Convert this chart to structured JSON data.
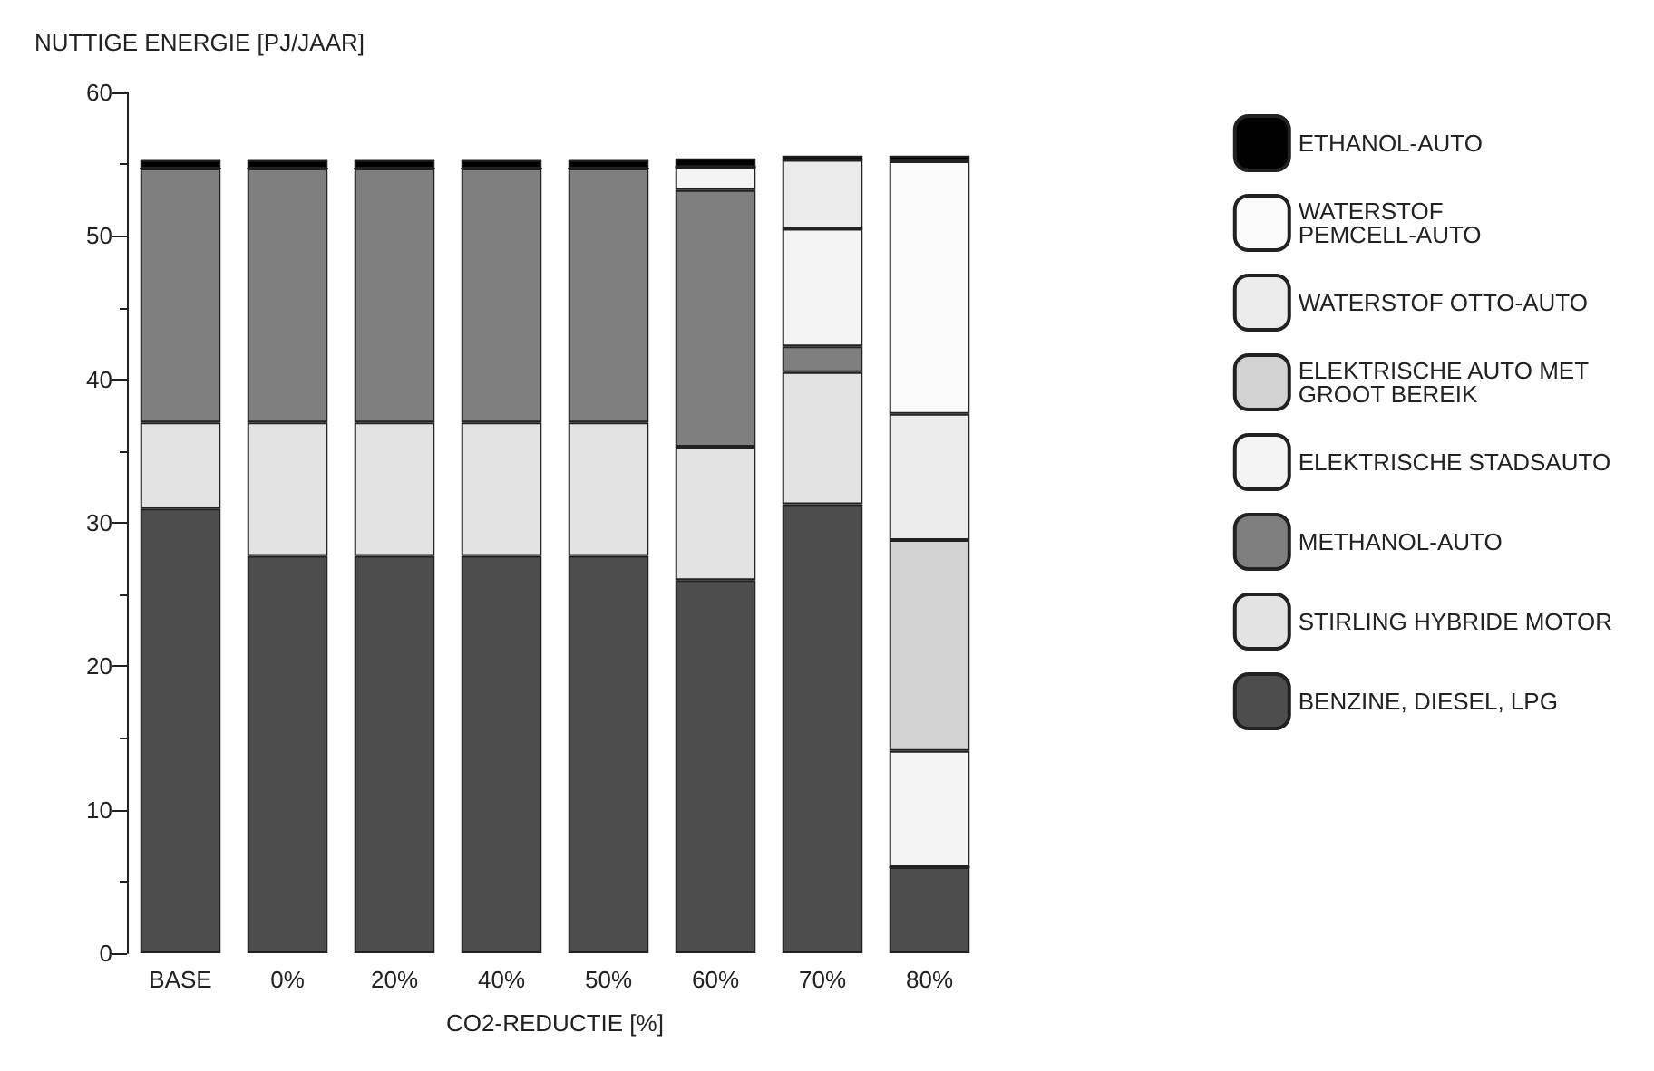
{
  "chart_data": {
    "type": "bar",
    "stacked": true,
    "ylabel": "NUTTIGE ENERGIE [PJ/JAAR]",
    "xlabel": "CO2-REDUCTIE [%]",
    "categories": [
      "BASE",
      "0%",
      "20%",
      "40%",
      "50%",
      "60%",
      "70%",
      "80%"
    ],
    "series": [
      {
        "name": "BENZINE, DIESEL, LPG",
        "color": "#4d4d4d",
        "values": [
          31.0,
          27.7,
          27.7,
          27.7,
          27.7,
          26.0,
          31.3,
          6.0
        ]
      },
      {
        "name": "STIRLING HYBRIDE MOTOR",
        "color": "#e3e3e3",
        "values": [
          6.0,
          9.3,
          9.3,
          9.3,
          9.3,
          9.3,
          9.2,
          0
        ]
      },
      {
        "name": "METHANOL-AUTO",
        "color": "#7f7f7f",
        "values": [
          17.7,
          17.7,
          17.7,
          17.7,
          17.7,
          17.9,
          1.8,
          0
        ]
      },
      {
        "name": "ELEKTRISCHE STADSAUTO",
        "color": "#f4f4f4",
        "values": [
          0,
          0,
          0,
          0,
          0,
          1.6,
          8.2,
          8.1
        ]
      },
      {
        "name": "ELEKTRISCHE AUTO MET GROOT BEREIK",
        "color": "#d2d2d2",
        "values": [
          0,
          0,
          0,
          0,
          0,
          0,
          0,
          14.7
        ]
      },
      {
        "name": "WATERSTOF OTTO-AUTO",
        "color": "#ebebeb",
        "values": [
          0,
          0,
          0,
          0,
          0,
          0,
          4.8,
          8.8
        ]
      },
      {
        "name": "WATERSTOF PEMCELL-AUTO",
        "color": "#fafafa",
        "values": [
          0,
          0,
          0,
          0,
          0,
          0,
          0,
          17.6
        ]
      },
      {
        "name": "ETHANOL-AUTO",
        "color": "#000000",
        "values": [
          0.6,
          0.6,
          0.6,
          0.6,
          0.6,
          0.6,
          0.3,
          0.4
        ]
      }
    ],
    "ylim": [
      0,
      60
    ],
    "yticks": [
      0,
      10,
      20,
      30,
      40,
      50,
      60
    ],
    "grid": false,
    "legend": "right"
  }
}
